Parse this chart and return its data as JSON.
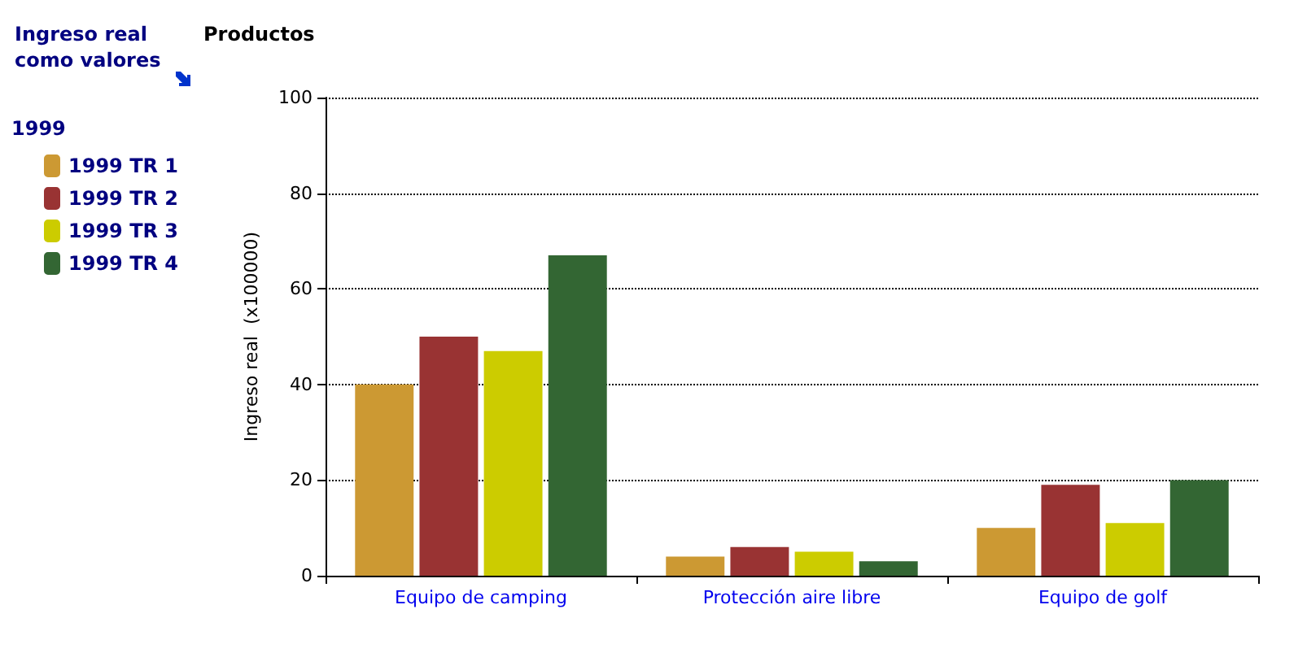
{
  "chart_data": {
    "type": "bar",
    "title": "Ingreso real como valores",
    "xlabel": "Productos",
    "ylabel": "Ingreso real  (x100000)",
    "legend_title": "1999",
    "categories": [
      "Equipo de camping",
      "Protección aire libre",
      "Equipo de golf"
    ],
    "series": [
      {
        "name": "1999 TR 1",
        "color": "#cc9933",
        "values": [
          40,
          4,
          10
        ]
      },
      {
        "name": "1999 TR 2",
        "color": "#993333",
        "values": [
          50,
          6,
          19
        ]
      },
      {
        "name": "1999 TR 3",
        "color": "#cccc00",
        "values": [
          47,
          5,
          11
        ]
      },
      {
        "name": "1999 TR 4",
        "color": "#336633",
        "values": [
          67,
          3,
          20
        ]
      }
    ],
    "ylim": [
      0,
      100
    ],
    "yticks": [
      0,
      20,
      40,
      60,
      80,
      100
    ],
    "grid": "y",
    "legend": "left"
  }
}
